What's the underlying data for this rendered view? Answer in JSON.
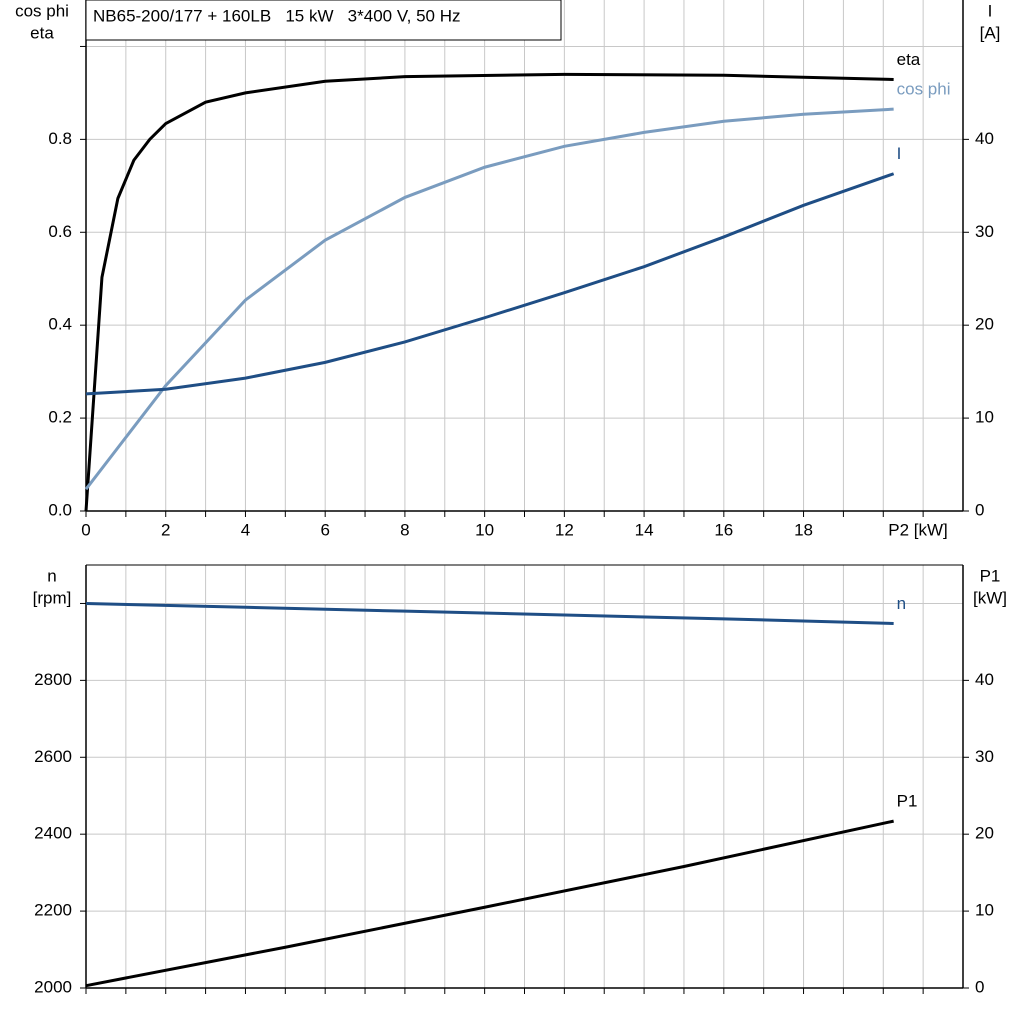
{
  "chart_data": [
    {
      "type": "line",
      "title": "NB65-200/177 + 160LB   15 kW   3*400 V, 50 Hz",
      "ylabel": [
        "cos phi",
        "eta"
      ],
      "y2label": [
        "I",
        "[A]"
      ],
      "xlabel": "P2 [kW]",
      "xlim": [
        0,
        22
      ],
      "xticks": [
        0,
        {
          "value": 1,
          "label": null
        },
        2,
        {
          "value": 3,
          "label": null
        },
        4,
        {
          "value": 5,
          "label": null
        },
        6,
        {
          "value": 7,
          "label": null
        },
        8,
        {
          "value": 9,
          "label": null
        },
        10,
        {
          "value": 11,
          "label": null
        },
        12,
        {
          "value": 13,
          "label": null
        },
        14,
        {
          "value": 15,
          "label": null
        },
        16,
        {
          "value": 17,
          "label": null
        },
        18,
        {
          "value": 19,
          "label": null
        },
        {
          "value": 20,
          "label": null
        },
        {
          "value": 21,
          "label": null
        }
      ],
      "ylim": [
        0,
        1.1
      ],
      "yticks": [
        {
          "value": 0,
          "label": "0.0"
        },
        0.2,
        0.4,
        0.6,
        0.8,
        {
          "value": 1,
          "label": null
        }
      ],
      "y2lim": [
        0,
        55
      ],
      "y2ticks": [
        0,
        10,
        20,
        30,
        40
      ],
      "grid": true,
      "series": [
        {
          "name": "eta",
          "color": "#000000",
          "axis": "y",
          "x": [
            0,
            0.4,
            0.8,
            1.2,
            1.6,
            2,
            3,
            4,
            6,
            8,
            12,
            16,
            20.26
          ],
          "values": [
            0,
            0.503,
            0.673,
            0.755,
            0.8,
            0.834,
            0.88,
            0.9,
            0.925,
            0.935,
            0.94,
            0.938,
            0.929
          ]
        },
        {
          "name": "cos phi",
          "color": "#7a9cbf",
          "axis": "y",
          "x": [
            0,
            2,
            4,
            6,
            8,
            10,
            12,
            14,
            16,
            18,
            20.26
          ],
          "values": [
            0.047,
            0.27,
            0.454,
            0.583,
            0.675,
            0.74,
            0.785,
            0.815,
            0.839,
            0.854,
            0.865
          ]
        },
        {
          "name": "I",
          "color": "#1f4e85",
          "axis": "y2",
          "x": [
            0,
            2,
            4,
            6,
            8,
            10,
            12,
            14,
            16,
            18,
            20.26
          ],
          "values": [
            12.6,
            13.1,
            14.3,
            16.0,
            18.2,
            20.8,
            23.5,
            26.3,
            29.5,
            32.9,
            36.3
          ]
        }
      ]
    },
    {
      "type": "line",
      "ylabel": [
        "n",
        "[rpm]"
      ],
      "y2label": [
        "P1",
        "[kW]"
      ],
      "xlim": [
        0,
        22
      ],
      "xticks": [
        {
          "value": 0,
          "label": null
        },
        {
          "value": 1,
          "label": null
        },
        {
          "value": 2,
          "label": null
        },
        {
          "value": 3,
          "label": null
        },
        {
          "value": 4,
          "label": null
        },
        {
          "value": 5,
          "label": null
        },
        {
          "value": 6,
          "label": null
        },
        {
          "value": 7,
          "label": null
        },
        {
          "value": 8,
          "label": null
        },
        {
          "value": 9,
          "label": null
        },
        {
          "value": 10,
          "label": null
        },
        {
          "value": 11,
          "label": null
        },
        {
          "value": 12,
          "label": null
        },
        {
          "value": 13,
          "label": null
        },
        {
          "value": 14,
          "label": null
        },
        {
          "value": 15,
          "label": null
        },
        {
          "value": 16,
          "label": null
        },
        {
          "value": 17,
          "label": null
        },
        {
          "value": 18,
          "label": null
        },
        {
          "value": 19,
          "label": null
        },
        {
          "value": 20,
          "label": null
        },
        {
          "value": 21,
          "label": null
        }
      ],
      "ylim": [
        2000,
        3100
      ],
      "yticks": [
        2000,
        2200,
        2400,
        2600,
        2800,
        {
          "value": 3000,
          "label": null
        }
      ],
      "y2lim": [
        0,
        55
      ],
      "y2ticks": [
        0,
        10,
        20,
        30,
        40
      ],
      "grid": true,
      "series": [
        {
          "name": "n",
          "color": "#1f4e85",
          "axis": "y",
          "x": [
            0,
            4,
            8,
            12,
            16,
            20.26
          ],
          "values": [
            3000,
            2990,
            2980,
            2970,
            2960,
            2948
          ]
        },
        {
          "name": "P1",
          "color": "#000000",
          "axis": "y2",
          "x": [
            0,
            5,
            10,
            15,
            20.26
          ],
          "values": [
            0.3,
            5.3,
            10.5,
            15.8,
            21.7
          ]
        }
      ]
    }
  ]
}
